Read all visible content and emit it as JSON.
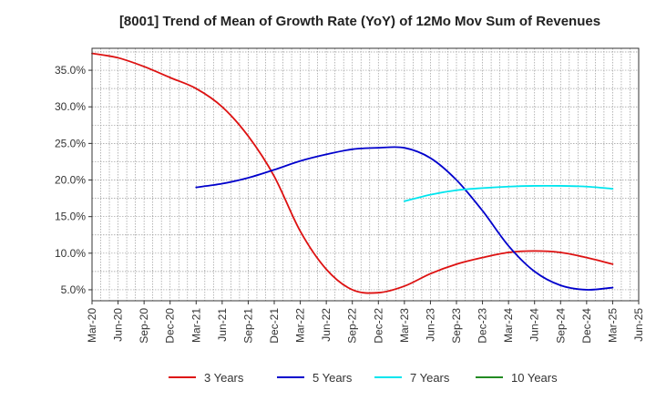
{
  "chart_data": {
    "type": "line",
    "title": "[8001]  Trend of Mean of Growth Rate (YoY) of 12Mo Mov Sum of Revenues",
    "xlabel": "",
    "ylabel": "",
    "x_ticks": [
      "Mar-20",
      "Jun-20",
      "Sep-20",
      "Dec-20",
      "Mar-21",
      "Jun-21",
      "Sep-21",
      "Dec-21",
      "Mar-22",
      "Jun-22",
      "Sep-22",
      "Dec-22",
      "Mar-23",
      "Jun-23",
      "Sep-23",
      "Dec-23",
      "Mar-24",
      "Jun-24",
      "Sep-24",
      "Dec-24",
      "Mar-25",
      "Jun-25"
    ],
    "y_ticks": [
      5.0,
      10.0,
      15.0,
      20.0,
      25.0,
      30.0,
      35.0
    ],
    "y_tick_labels": [
      "5.0%",
      "10.0%",
      "15.0%",
      "20.0%",
      "25.0%",
      "30.0%",
      "35.0%"
    ],
    "ylim": [
      3.5,
      38.0
    ],
    "grid": true,
    "legend_position": "bottom",
    "series": [
      {
        "name": "3 Years",
        "color": "#dd1111",
        "points": [
          [
            0,
            37.3
          ],
          [
            1,
            36.7
          ],
          [
            2,
            35.5
          ],
          [
            3,
            34.0
          ],
          [
            4,
            32.5
          ],
          [
            5,
            30.0
          ],
          [
            6,
            26.0
          ],
          [
            7,
            20.5
          ],
          [
            8,
            13.0
          ],
          [
            9,
            7.8
          ],
          [
            10,
            5.0
          ],
          [
            11,
            4.6
          ],
          [
            12,
            5.5
          ],
          [
            13,
            7.2
          ],
          [
            14,
            8.5
          ],
          [
            15,
            9.4
          ],
          [
            16,
            10.1
          ],
          [
            17,
            10.3
          ],
          [
            18,
            10.1
          ],
          [
            19,
            9.4
          ],
          [
            20,
            8.5
          ]
        ]
      },
      {
        "name": "5 Years",
        "color": "#0000cc",
        "points": [
          [
            4,
            19.0
          ],
          [
            5,
            19.5
          ],
          [
            6,
            20.3
          ],
          [
            7,
            21.4
          ],
          [
            8,
            22.6
          ],
          [
            9,
            23.5
          ],
          [
            10,
            24.2
          ],
          [
            11,
            24.4
          ],
          [
            12,
            24.4
          ],
          [
            13,
            23.0
          ],
          [
            14,
            20.0
          ],
          [
            15,
            15.8
          ],
          [
            16,
            11.0
          ],
          [
            17,
            7.5
          ],
          [
            18,
            5.6
          ],
          [
            19,
            5.0
          ],
          [
            20,
            5.3
          ]
        ]
      },
      {
        "name": "7 Years",
        "color": "#00e5ee",
        "points": [
          [
            12,
            17.1
          ],
          [
            13,
            18.0
          ],
          [
            14,
            18.6
          ],
          [
            15,
            18.9
          ],
          [
            16,
            19.1
          ],
          [
            17,
            19.2
          ],
          [
            18,
            19.2
          ],
          [
            19,
            19.1
          ],
          [
            20,
            18.8
          ]
        ]
      },
      {
        "name": "10 Years",
        "color": "#228b22",
        "points": []
      }
    ]
  }
}
